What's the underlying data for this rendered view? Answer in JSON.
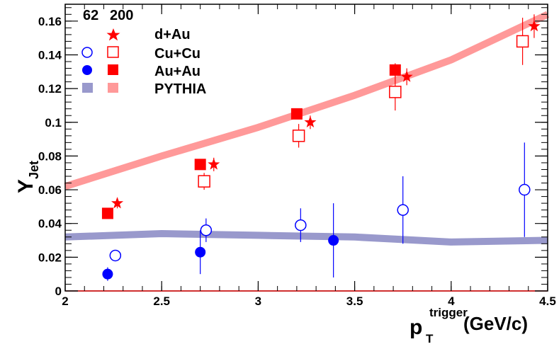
{
  "chart_data": {
    "type": "scatter",
    "xlabel_main": "p",
    "xlabel_sub": "T",
    "xlabel_sup": "trigger",
    "xlabel_unit": "(GeV/c)",
    "ylabel_main": "Y",
    "ylabel_sub": "Jet",
    "xlim": [
      2,
      4.5
    ],
    "ylim": [
      0,
      0.17
    ],
    "xticks": [
      2,
      2.5,
      3,
      3.5,
      4,
      4.5
    ],
    "xtick_labels": [
      "2",
      "2.5",
      "3",
      "3.5",
      "4",
      "4.5"
    ],
    "yticks": [
      0,
      0.02,
      0.04,
      0.06,
      0.08,
      0.1,
      0.12,
      0.14,
      0.16
    ],
    "ytick_labels": [
      "0",
      "0.02",
      "0.04",
      "0.06",
      "0.08",
      "0.1",
      "0.12",
      "0.14",
      "0.16"
    ],
    "legend": {
      "header_62": "62",
      "header_200": "200",
      "rows": [
        "d+Au",
        "Cu+Cu",
        "Au+Au",
        "PYTHIA"
      ],
      "placement": "top-left"
    },
    "colors": {
      "red": "#ff0000",
      "blue": "#0000ff",
      "pythia_200": "#ff9999",
      "pythia_62": "#9999cc"
    },
    "series": [
      {
        "name": "d+Au",
        "energy": "200",
        "marker": "star",
        "color": "#ff0000",
        "points": [
          {
            "x": 2.27,
            "y": 0.052,
            "err": 0.003
          },
          {
            "x": 2.77,
            "y": 0.075,
            "err": 0.004
          },
          {
            "x": 3.27,
            "y": 0.1,
            "err": 0.004
          },
          {
            "x": 3.77,
            "y": 0.127,
            "err": 0.005
          },
          {
            "x": 4.43,
            "y": 0.157,
            "err": 0.007
          }
        ]
      },
      {
        "name": "Cu+Cu",
        "energy": "62",
        "marker": "open-circle",
        "color": "#0000ff",
        "points": [
          {
            "x": 2.26,
            "y": 0.021,
            "err": 0.003
          },
          {
            "x": 2.73,
            "y": 0.036,
            "err": 0.007
          },
          {
            "x": 3.22,
            "y": 0.039,
            "err": 0.01
          },
          {
            "x": 3.75,
            "y": 0.048,
            "err": 0.02
          },
          {
            "x": 4.38,
            "y": 0.06,
            "err": 0.028
          }
        ]
      },
      {
        "name": "Cu+Cu",
        "energy": "200",
        "marker": "open-square",
        "color": "#ff0000",
        "points": [
          {
            "x": 2.72,
            "y": 0.065,
            "err": 0.005
          },
          {
            "x": 3.21,
            "y": 0.092,
            "err": 0.007
          },
          {
            "x": 3.71,
            "y": 0.118,
            "err": 0.011
          },
          {
            "x": 4.37,
            "y": 0.148,
            "err": 0.014
          }
        ]
      },
      {
        "name": "Au+Au",
        "energy": "62",
        "marker": "filled-circle",
        "color": "#0000ff",
        "points": [
          {
            "x": 2.22,
            "y": 0.01,
            "err": 0.004
          },
          {
            "x": 2.7,
            "y": 0.023,
            "err": 0.013
          },
          {
            "x": 3.39,
            "y": 0.03,
            "err": 0.022
          }
        ]
      },
      {
        "name": "Au+Au",
        "energy": "200",
        "marker": "filled-square",
        "color": "#ff0000",
        "points": [
          {
            "x": 2.22,
            "y": 0.046,
            "err": 0.002
          },
          {
            "x": 2.7,
            "y": 0.075,
            "err": 0.003
          },
          {
            "x": 3.2,
            "y": 0.105,
            "err": 0.003
          },
          {
            "x": 3.71,
            "y": 0.131,
            "err": 0.004
          }
        ]
      },
      {
        "name": "PYTHIA",
        "energy": "200",
        "marker": "band",
        "color": "#ff9999",
        "line": [
          [
            2,
            0.062
          ],
          [
            2.5,
            0.08
          ],
          [
            3,
            0.097
          ],
          [
            3.5,
            0.116
          ],
          [
            4,
            0.137
          ],
          [
            4.5,
            0.164
          ]
        ]
      },
      {
        "name": "PYTHIA",
        "energy": "62",
        "marker": "band",
        "color": "#9999cc",
        "line": [
          [
            2,
            0.032
          ],
          [
            2.5,
            0.034
          ],
          [
            3,
            0.033
          ],
          [
            3.5,
            0.032
          ],
          [
            4,
            0.029
          ],
          [
            4.5,
            0.03
          ]
        ]
      }
    ]
  }
}
